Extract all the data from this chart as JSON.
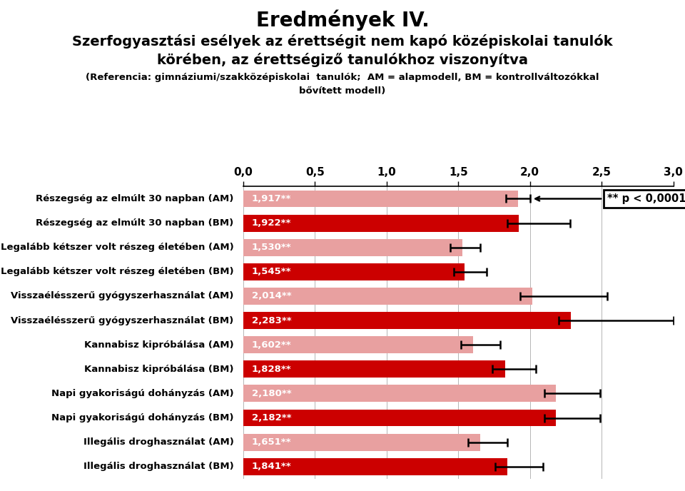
{
  "title1": "Eredmények IV.",
  "title2_line1": "Szerfogyasztási esélyek az érettségit nem kapó középiskolai tanulók",
  "title2_line2": "körében, az érettségiző tanulókhoz viszonyítva",
  "subtitle_line1": "(Referencia: gimnáziumi/szakközépiskolai  tanulók;  AM = alapmodell, BM = kontrollváltozókkal",
  "subtitle_line2": "bővített modell)",
  "categories": [
    "Részegség az elmúlt 30 napban (AM)",
    "Részegség az elmúlt 30 napban (BM)",
    "Legalább kétszer volt részeg életében (AM)",
    "Legalább kétszer volt részeg életében (BM)",
    "Visszaélésszerű gyógyszerhasználat (AM)",
    "Visszaélésszerű gyógyszerhasználat (BM)",
    "Kannabisz kipróbálása (AM)",
    "Kannabisz kipróbálása (BM)",
    "Napi gyakoriságú dohányzás (AM)",
    "Napi gyakoriságú dohányzás (BM)",
    "Illegális droghasználat (AM)",
    "Illegális droghasználat (BM)"
  ],
  "values": [
    1.917,
    1.922,
    1.53,
    1.545,
    2.014,
    2.283,
    1.602,
    1.828,
    2.18,
    2.182,
    1.651,
    1.841
  ],
  "bar_labels": [
    "1,917**",
    "1,922**",
    "1,530**",
    "1,545**",
    "2,014**",
    "2,283**",
    "1,602**",
    "1,828**",
    "2,180**",
    "2,182**",
    "1,651**",
    "1,841**"
  ],
  "error_upper": [
    0.083,
    0.358,
    0.125,
    0.155,
    0.526,
    0.717,
    0.188,
    0.212,
    0.31,
    0.308,
    0.189,
    0.249
  ],
  "error_lower": [
    0.083,
    0.082,
    0.085,
    0.075,
    0.084,
    0.083,
    0.082,
    0.088,
    0.08,
    0.082,
    0.081,
    0.081
  ],
  "colors": [
    "#E8A0A0",
    "#CC0000",
    "#E8A0A0",
    "#CC0000",
    "#E8A0A0",
    "#CC0000",
    "#E8A0A0",
    "#CC0000",
    "#E8A0A0",
    "#CC0000",
    "#E8A0A0",
    "#CC0000"
  ],
  "xlim": [
    0.0,
    3.0
  ],
  "xticks": [
    0.0,
    0.5,
    1.0,
    1.5,
    2.0,
    2.5,
    3.0
  ],
  "xtick_labels": [
    "0,0",
    "0,5",
    "1,0",
    "1,5",
    "2,0",
    "2,5",
    "3,0"
  ],
  "legend_text": "** p < 0,0001",
  "bg_color": "#FFFFFF",
  "title1_fontsize": 20,
  "title2_fontsize": 14,
  "subtitle_fontsize": 9.5,
  "cat_fontsize": 9.5,
  "bar_label_fontsize": 9.5,
  "xtick_fontsize": 11
}
